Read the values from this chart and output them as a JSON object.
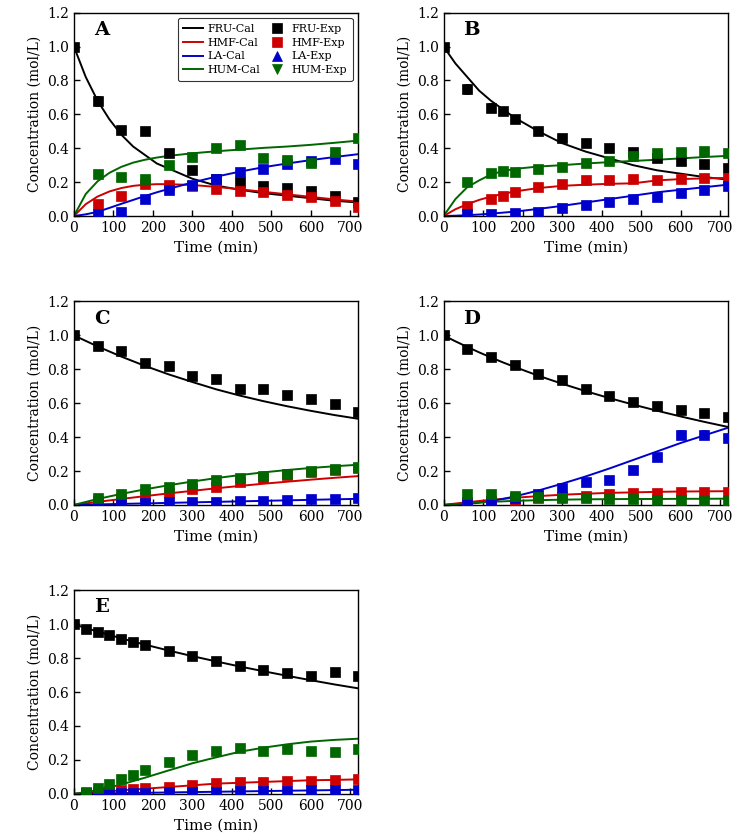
{
  "colors": {
    "FRU": "#000000",
    "HMF": "#cc0000",
    "LA": "#0000cc",
    "HUM": "#006600"
  },
  "panel_A": {
    "label": "A",
    "fru_cal_t": [
      0,
      30,
      60,
      90,
      120,
      150,
      180,
      210,
      240,
      300,
      360,
      420,
      480,
      540,
      600,
      660,
      720
    ],
    "fru_cal_y": [
      1.0,
      0.82,
      0.68,
      0.57,
      0.48,
      0.41,
      0.36,
      0.31,
      0.28,
      0.22,
      0.18,
      0.155,
      0.135,
      0.12,
      0.105,
      0.09,
      0.08
    ],
    "hmf_cal_t": [
      0,
      30,
      60,
      90,
      120,
      150,
      180,
      210,
      240,
      300,
      360,
      420,
      480,
      540,
      600,
      660,
      720
    ],
    "hmf_cal_y": [
      0.0,
      0.07,
      0.115,
      0.145,
      0.165,
      0.178,
      0.185,
      0.188,
      0.188,
      0.183,
      0.172,
      0.158,
      0.143,
      0.128,
      0.113,
      0.098,
      0.085
    ],
    "la_cal_t": [
      0,
      30,
      60,
      90,
      120,
      150,
      180,
      210,
      240,
      300,
      360,
      420,
      480,
      540,
      600,
      660,
      720
    ],
    "la_cal_y": [
      0.0,
      0.01,
      0.025,
      0.048,
      0.072,
      0.095,
      0.118,
      0.14,
      0.16,
      0.198,
      0.232,
      0.262,
      0.288,
      0.31,
      0.33,
      0.348,
      0.365
    ],
    "hum_cal_t": [
      0,
      30,
      60,
      90,
      120,
      150,
      180,
      210,
      240,
      300,
      360,
      420,
      480,
      540,
      600,
      660,
      720
    ],
    "hum_cal_y": [
      0.0,
      0.13,
      0.205,
      0.255,
      0.29,
      0.315,
      0.332,
      0.345,
      0.355,
      0.37,
      0.382,
      0.392,
      0.402,
      0.41,
      0.42,
      0.432,
      0.445
    ],
    "fru_exp_t": [
      0,
      60,
      120,
      180,
      240,
      300,
      360,
      420,
      480,
      540,
      600,
      660,
      720
    ],
    "fru_exp_y": [
      1.0,
      0.68,
      0.51,
      0.5,
      0.37,
      0.27,
      0.22,
      0.2,
      0.18,
      0.165,
      0.15,
      0.12,
      0.085
    ],
    "fru_exp_e": [
      0.02,
      0.03,
      0.02,
      0.02,
      0.02,
      0.015,
      0.015,
      0.012,
      0.012,
      0.01,
      0.01,
      0.01,
      0.01
    ],
    "hmf_exp_t": [
      60,
      120,
      180,
      240,
      300,
      360,
      420,
      480,
      540,
      600,
      660,
      720
    ],
    "hmf_exp_y": [
      0.07,
      0.12,
      0.19,
      0.185,
      0.175,
      0.16,
      0.15,
      0.14,
      0.125,
      0.11,
      0.09,
      0.055
    ],
    "hmf_exp_e": [
      0.008,
      0.01,
      0.012,
      0.01,
      0.01,
      0.01,
      0.01,
      0.01,
      0.01,
      0.01,
      0.008,
      0.006
    ],
    "la_exp_t": [
      60,
      120,
      180,
      240,
      300,
      360,
      420,
      480,
      540,
      600,
      660,
      720
    ],
    "la_exp_y": [
      0.01,
      0.025,
      0.1,
      0.155,
      0.185,
      0.22,
      0.26,
      0.28,
      0.305,
      0.325,
      0.335,
      0.305
    ],
    "la_exp_e": [
      0.005,
      0.01,
      0.012,
      0.012,
      0.012,
      0.012,
      0.012,
      0.012,
      0.012,
      0.012,
      0.012,
      0.012
    ],
    "hum_exp_t": [
      60,
      120,
      180,
      240,
      300,
      360,
      420,
      480,
      540,
      600,
      660,
      720
    ],
    "hum_exp_y": [
      0.25,
      0.23,
      0.22,
      0.3,
      0.35,
      0.4,
      0.42,
      0.34,
      0.33,
      0.31,
      0.38,
      0.46
    ],
    "hum_exp_e": [
      0.015,
      0.012,
      0.012,
      0.015,
      0.015,
      0.015,
      0.018,
      0.015,
      0.015,
      0.015,
      0.015,
      0.015
    ]
  },
  "panel_B": {
    "label": "B",
    "fru_cal_t": [
      0,
      30,
      60,
      90,
      120,
      150,
      180,
      240,
      300,
      360,
      420,
      480,
      540,
      600,
      660,
      720
    ],
    "fru_cal_y": [
      1.0,
      0.9,
      0.82,
      0.74,
      0.68,
      0.63,
      0.58,
      0.5,
      0.43,
      0.38,
      0.34,
      0.3,
      0.27,
      0.25,
      0.23,
      0.215
    ],
    "hmf_cal_t": [
      0,
      30,
      60,
      90,
      120,
      150,
      180,
      240,
      300,
      360,
      420,
      480,
      540,
      600,
      660,
      720
    ],
    "hmf_cal_y": [
      0.0,
      0.04,
      0.07,
      0.095,
      0.115,
      0.13,
      0.145,
      0.165,
      0.178,
      0.185,
      0.19,
      0.193,
      0.21,
      0.218,
      0.222,
      0.225
    ],
    "la_cal_t": [
      0,
      30,
      60,
      90,
      120,
      150,
      180,
      240,
      300,
      360,
      420,
      480,
      540,
      600,
      660,
      720
    ],
    "la_cal_y": [
      0.0,
      0.002,
      0.005,
      0.009,
      0.014,
      0.02,
      0.026,
      0.042,
      0.06,
      0.08,
      0.1,
      0.12,
      0.14,
      0.155,
      0.17,
      0.185
    ],
    "hum_cal_t": [
      0,
      30,
      60,
      90,
      120,
      150,
      180,
      240,
      300,
      360,
      420,
      480,
      540,
      600,
      660,
      720
    ],
    "hum_cal_y": [
      0.0,
      0.1,
      0.17,
      0.21,
      0.245,
      0.265,
      0.278,
      0.292,
      0.3,
      0.31,
      0.318,
      0.325,
      0.332,
      0.34,
      0.348,
      0.355
    ],
    "fru_exp_t": [
      0,
      60,
      120,
      150,
      180,
      240,
      300,
      360,
      420,
      480,
      540,
      600,
      660,
      720
    ],
    "fru_exp_y": [
      1.0,
      0.75,
      0.64,
      0.62,
      0.57,
      0.5,
      0.46,
      0.43,
      0.4,
      0.38,
      0.34,
      0.325,
      0.305,
      0.285
    ],
    "fru_exp_e": [
      0.02,
      0.03,
      0.025,
      0.022,
      0.022,
      0.02,
      0.018,
      0.015,
      0.015,
      0.015,
      0.012,
      0.012,
      0.012,
      0.012
    ],
    "hmf_exp_t": [
      60,
      120,
      150,
      180,
      240,
      300,
      360,
      420,
      480,
      540,
      600,
      660,
      720
    ],
    "hmf_exp_y": [
      0.06,
      0.1,
      0.12,
      0.14,
      0.17,
      0.19,
      0.21,
      0.215,
      0.22,
      0.215,
      0.22,
      0.225,
      0.225
    ],
    "hmf_exp_e": [
      0.008,
      0.01,
      0.01,
      0.012,
      0.012,
      0.012,
      0.012,
      0.012,
      0.012,
      0.012,
      0.012,
      0.012,
      0.012
    ],
    "la_exp_t": [
      60,
      120,
      180,
      240,
      300,
      360,
      420,
      480,
      540,
      600,
      660,
      720
    ],
    "la_exp_y": [
      0.01,
      0.01,
      0.02,
      0.025,
      0.05,
      0.065,
      0.085,
      0.1,
      0.115,
      0.135,
      0.155,
      0.175
    ],
    "la_exp_e": [
      0.004,
      0.004,
      0.006,
      0.006,
      0.008,
      0.008,
      0.01,
      0.01,
      0.01,
      0.01,
      0.01,
      0.01
    ],
    "hum_exp_t": [
      60,
      120,
      150,
      180,
      240,
      300,
      360,
      420,
      480,
      540,
      600,
      660,
      720
    ],
    "hum_exp_y": [
      0.2,
      0.255,
      0.268,
      0.262,
      0.278,
      0.29,
      0.315,
      0.325,
      0.352,
      0.372,
      0.375,
      0.382,
      0.372
    ],
    "hum_exp_e": [
      0.015,
      0.015,
      0.012,
      0.012,
      0.012,
      0.012,
      0.012,
      0.012,
      0.012,
      0.012,
      0.012,
      0.012,
      0.012
    ]
  },
  "panel_C": {
    "label": "C",
    "fru_cal_t": [
      0,
      60,
      120,
      180,
      240,
      300,
      360,
      420,
      480,
      540,
      600,
      660,
      720
    ],
    "fru_cal_y": [
      1.0,
      0.935,
      0.875,
      0.82,
      0.77,
      0.725,
      0.682,
      0.645,
      0.612,
      0.582,
      0.555,
      0.53,
      0.508
    ],
    "hmf_cal_t": [
      0,
      60,
      120,
      180,
      240,
      300,
      360,
      420,
      480,
      540,
      600,
      660,
      720
    ],
    "hmf_cal_y": [
      0.0,
      0.018,
      0.035,
      0.052,
      0.068,
      0.083,
      0.098,
      0.112,
      0.125,
      0.137,
      0.149,
      0.16,
      0.17
    ],
    "la_cal_t": [
      0,
      60,
      120,
      180,
      240,
      300,
      360,
      420,
      480,
      540,
      600,
      660,
      720
    ],
    "la_cal_y": [
      0.0,
      0.003,
      0.006,
      0.009,
      0.012,
      0.015,
      0.018,
      0.021,
      0.024,
      0.027,
      0.03,
      0.033,
      0.036
    ],
    "hum_cal_t": [
      0,
      60,
      120,
      180,
      240,
      300,
      360,
      420,
      480,
      540,
      600,
      660,
      720
    ],
    "hum_cal_y": [
      0.0,
      0.035,
      0.065,
      0.092,
      0.116,
      0.138,
      0.158,
      0.176,
      0.192,
      0.206,
      0.218,
      0.228,
      0.237
    ],
    "fru_exp_t": [
      0,
      60,
      120,
      180,
      240,
      300,
      360,
      420,
      480,
      540,
      600,
      660,
      720
    ],
    "fru_exp_y": [
      1.0,
      0.935,
      0.91,
      0.84,
      0.82,
      0.76,
      0.74,
      0.685,
      0.682,
      0.648,
      0.622,
      0.598,
      0.548
    ],
    "fru_exp_e": [
      0.02,
      0.02,
      0.022,
      0.022,
      0.022,
      0.022,
      0.022,
      0.022,
      0.022,
      0.022,
      0.022,
      0.022,
      0.022
    ],
    "hmf_exp_t": [
      60,
      120,
      180,
      240,
      300,
      360,
      420,
      480,
      540,
      600,
      660,
      720
    ],
    "hmf_exp_y": [
      0.022,
      0.04,
      0.055,
      0.068,
      0.095,
      0.105,
      0.135,
      0.158,
      0.175,
      0.192,
      0.205,
      0.215
    ],
    "hmf_exp_e": [
      0.005,
      0.006,
      0.007,
      0.008,
      0.01,
      0.01,
      0.012,
      0.012,
      0.012,
      0.012,
      0.012,
      0.012
    ],
    "la_exp_t": [
      60,
      120,
      180,
      240,
      300,
      360,
      420,
      480,
      540,
      600,
      660,
      720
    ],
    "la_exp_y": [
      0.005,
      0.01,
      0.012,
      0.015,
      0.016,
      0.02,
      0.022,
      0.026,
      0.028,
      0.032,
      0.035,
      0.042
    ],
    "la_exp_e": [
      0.002,
      0.003,
      0.003,
      0.003,
      0.003,
      0.003,
      0.003,
      0.004,
      0.004,
      0.004,
      0.004,
      0.005
    ],
    "hum_exp_t": [
      60,
      120,
      180,
      240,
      300,
      360,
      420,
      480,
      540,
      600,
      660,
      720
    ],
    "hum_exp_y": [
      0.042,
      0.065,
      0.092,
      0.105,
      0.125,
      0.145,
      0.158,
      0.172,
      0.185,
      0.198,
      0.212,
      0.225
    ],
    "hum_exp_e": [
      0.006,
      0.007,
      0.009,
      0.01,
      0.01,
      0.012,
      0.012,
      0.012,
      0.012,
      0.012,
      0.012,
      0.012
    ]
  },
  "panel_D": {
    "label": "D",
    "fru_cal_t": [
      0,
      30,
      60,
      90,
      120,
      150,
      180,
      240,
      300,
      360,
      420,
      480,
      540,
      600,
      660,
      720
    ],
    "fru_cal_y": [
      1.0,
      0.965,
      0.932,
      0.9,
      0.87,
      0.841,
      0.814,
      0.762,
      0.715,
      0.671,
      0.63,
      0.592,
      0.556,
      0.522,
      0.49,
      0.46
    ],
    "hmf_cal_t": [
      0,
      30,
      60,
      90,
      120,
      150,
      180,
      240,
      300,
      360,
      420,
      480,
      540,
      600,
      660,
      720
    ],
    "hmf_cal_y": [
      0.0,
      0.008,
      0.016,
      0.023,
      0.03,
      0.036,
      0.042,
      0.052,
      0.06,
      0.066,
      0.071,
      0.074,
      0.077,
      0.079,
      0.08,
      0.081
    ],
    "la_cal_t": [
      0,
      30,
      60,
      90,
      120,
      150,
      180,
      240,
      300,
      360,
      420,
      480,
      540,
      600,
      660,
      720
    ],
    "la_cal_y": [
      0.0,
      0.002,
      0.006,
      0.013,
      0.022,
      0.035,
      0.05,
      0.085,
      0.125,
      0.168,
      0.215,
      0.265,
      0.315,
      0.365,
      0.41,
      0.455
    ],
    "hum_cal_t": [
      0,
      30,
      60,
      90,
      120,
      150,
      180,
      240,
      300,
      360,
      420,
      480,
      540,
      600,
      660,
      720
    ],
    "hum_cal_y": [
      0.0,
      0.005,
      0.01,
      0.015,
      0.018,
      0.021,
      0.024,
      0.028,
      0.031,
      0.033,
      0.034,
      0.035,
      0.035,
      0.036,
      0.036,
      0.037
    ],
    "fru_exp_t": [
      0,
      60,
      120,
      180,
      240,
      300,
      360,
      420,
      480,
      540,
      600,
      660,
      720
    ],
    "fru_exp_y": [
      1.0,
      0.92,
      0.875,
      0.825,
      0.775,
      0.735,
      0.685,
      0.645,
      0.608,
      0.582,
      0.562,
      0.542,
      0.518
    ],
    "fru_exp_e": [
      0.02,
      0.02,
      0.022,
      0.022,
      0.022,
      0.022,
      0.022,
      0.022,
      0.022,
      0.022,
      0.022,
      0.022,
      0.022
    ],
    "hmf_exp_t": [
      60,
      120,
      180,
      240,
      300,
      360,
      420,
      480,
      540,
      600,
      660,
      720
    ],
    "hmf_exp_y": [
      0.015,
      0.025,
      0.03,
      0.04,
      0.048,
      0.055,
      0.062,
      0.068,
      0.072,
      0.075,
      0.078,
      0.075
    ],
    "hmf_exp_e": [
      0.004,
      0.005,
      0.005,
      0.006,
      0.006,
      0.007,
      0.007,
      0.007,
      0.007,
      0.007,
      0.007,
      0.007
    ],
    "la_exp_t": [
      60,
      120,
      180,
      240,
      300,
      360,
      420,
      480,
      540,
      600,
      660,
      720
    ],
    "la_exp_y": [
      0.01,
      0.02,
      0.04,
      0.065,
      0.1,
      0.135,
      0.145,
      0.205,
      0.285,
      0.415,
      0.415,
      0.395
    ],
    "la_exp_e": [
      0.005,
      0.006,
      0.008,
      0.01,
      0.012,
      0.014,
      0.015,
      0.018,
      0.022,
      0.025,
      0.025,
      0.025
    ],
    "hum_exp_t": [
      60,
      120,
      180,
      240,
      300,
      360,
      420,
      480,
      540,
      600,
      660,
      720
    ],
    "hum_exp_y": [
      0.065,
      0.065,
      0.055,
      0.045,
      0.04,
      0.038,
      0.035,
      0.032,
      0.03,
      0.028,
      0.025,
      0.022
    ],
    "hum_exp_e": [
      0.008,
      0.008,
      0.007,
      0.006,
      0.006,
      0.005,
      0.005,
      0.005,
      0.005,
      0.005,
      0.004,
      0.004
    ]
  },
  "panel_E": {
    "label": "E",
    "fru_cal_t": [
      0,
      30,
      60,
      90,
      120,
      150,
      180,
      240,
      300,
      360,
      420,
      480,
      540,
      600,
      660,
      720
    ],
    "fru_cal_y": [
      1.0,
      0.978,
      0.957,
      0.937,
      0.917,
      0.898,
      0.88,
      0.845,
      0.812,
      0.781,
      0.751,
      0.723,
      0.696,
      0.67,
      0.645,
      0.622
    ],
    "hmf_cal_t": [
      0,
      30,
      60,
      90,
      120,
      150,
      180,
      240,
      300,
      360,
      420,
      480,
      540,
      600,
      660,
      720
    ],
    "hmf_cal_y": [
      0.0,
      0.005,
      0.01,
      0.015,
      0.02,
      0.025,
      0.03,
      0.04,
      0.05,
      0.06,
      0.065,
      0.07,
      0.075,
      0.08,
      0.082,
      0.085
    ],
    "la_cal_t": [
      0,
      30,
      60,
      90,
      120,
      150,
      180,
      240,
      300,
      360,
      420,
      480,
      540,
      600,
      660,
      720
    ],
    "la_cal_y": [
      0.0,
      0.001,
      0.002,
      0.003,
      0.004,
      0.005,
      0.006,
      0.008,
      0.01,
      0.012,
      0.014,
      0.016,
      0.018,
      0.02,
      0.022,
      0.024
    ],
    "hum_cal_t": [
      0,
      30,
      60,
      90,
      120,
      150,
      180,
      240,
      300,
      360,
      420,
      480,
      540,
      600,
      660,
      720
    ],
    "hum_cal_y": [
      0.0,
      0.01,
      0.022,
      0.038,
      0.055,
      0.075,
      0.095,
      0.138,
      0.18,
      0.215,
      0.248,
      0.272,
      0.292,
      0.308,
      0.318,
      0.325
    ],
    "fru_exp_t": [
      0,
      30,
      60,
      90,
      120,
      150,
      180,
      240,
      300,
      360,
      420,
      480,
      540,
      600,
      660,
      720
    ],
    "fru_exp_y": [
      1.0,
      0.97,
      0.955,
      0.935,
      0.915,
      0.898,
      0.88,
      0.845,
      0.815,
      0.785,
      0.755,
      0.728,
      0.712,
      0.695,
      0.718,
      0.695
    ],
    "fru_exp_e": [
      0.02,
      0.012,
      0.012,
      0.012,
      0.012,
      0.012,
      0.012,
      0.012,
      0.012,
      0.012,
      0.012,
      0.012,
      0.012,
      0.012,
      0.012,
      0.012
    ],
    "hmf_exp_t": [
      30,
      60,
      90,
      120,
      150,
      180,
      240,
      300,
      360,
      420,
      480,
      540,
      600,
      660,
      720
    ],
    "hmf_exp_y": [
      0.005,
      0.012,
      0.018,
      0.022,
      0.028,
      0.032,
      0.042,
      0.052,
      0.062,
      0.068,
      0.072,
      0.075,
      0.078,
      0.082,
      0.085
    ],
    "hmf_exp_e": [
      0.002,
      0.003,
      0.003,
      0.004,
      0.004,
      0.004,
      0.005,
      0.005,
      0.006,
      0.006,
      0.006,
      0.006,
      0.006,
      0.006,
      0.006
    ],
    "la_exp_t": [
      30,
      60,
      90,
      120,
      150,
      180,
      240,
      300,
      360,
      420,
      480,
      540,
      600,
      660,
      720
    ],
    "la_exp_y": [
      0.002,
      0.003,
      0.004,
      0.005,
      0.006,
      0.007,
      0.009,
      0.011,
      0.013,
      0.015,
      0.017,
      0.019,
      0.021,
      0.023,
      0.025
    ],
    "la_exp_e": [
      0.001,
      0.001,
      0.001,
      0.001,
      0.001,
      0.001,
      0.002,
      0.002,
      0.002,
      0.002,
      0.002,
      0.002,
      0.002,
      0.002,
      0.002
    ],
    "hum_exp_t": [
      30,
      60,
      90,
      120,
      150,
      180,
      240,
      300,
      360,
      420,
      480,
      540,
      600,
      660,
      720
    ],
    "hum_exp_y": [
      0.012,
      0.032,
      0.058,
      0.085,
      0.112,
      0.138,
      0.188,
      0.228,
      0.252,
      0.272,
      0.252,
      0.262,
      0.252,
      0.248,
      0.262
    ],
    "hum_exp_e": [
      0.004,
      0.006,
      0.008,
      0.01,
      0.012,
      0.014,
      0.016,
      0.018,
      0.018,
      0.018,
      0.016,
      0.016,
      0.016,
      0.015,
      0.015
    ]
  },
  "ylim": [
    0.0,
    1.2
  ],
  "xlim": [
    0,
    720
  ],
  "xticks": [
    0,
    100,
    200,
    300,
    400,
    500,
    600,
    700
  ],
  "yticks": [
    0.0,
    0.2,
    0.4,
    0.6,
    0.8,
    1.0,
    1.2
  ],
  "xlabel": "Time (min)",
  "ylabel": "Concentration (mol/L)"
}
